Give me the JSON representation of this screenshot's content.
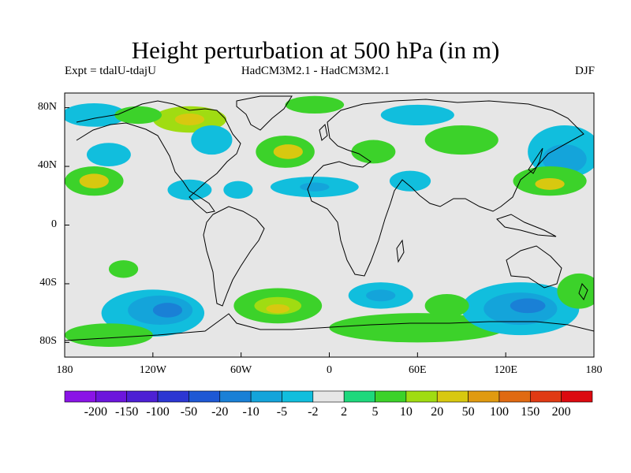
{
  "title": "Height perturbation at 500 hPa (in m)",
  "subtitle_left": "Expt = tdalU-tdajU",
  "subtitle_center": "HadCM3M2.1 - HadCM3M2.1",
  "subtitle_right": "DJF",
  "map": {
    "projection": "cylindrical equidistant",
    "lon_range": [
      -180,
      180
    ],
    "lat_range": [
      -90,
      90
    ],
    "background_color": "#e6e6e6",
    "coastline_color": "#000000"
  },
  "axes": {
    "y_ticks": [
      {
        "label": "80N",
        "lat": 80
      },
      {
        "label": "40N",
        "lat": 40
      },
      {
        "label": "0",
        "lat": 0
      },
      {
        "label": "40S",
        "lat": -40
      },
      {
        "label": "80S",
        "lat": -80
      }
    ],
    "x_ticks": [
      {
        "label": "180",
        "lon": -180
      },
      {
        "label": "120W",
        "lon": -120
      },
      {
        "label": "60W",
        "lon": -60
      },
      {
        "label": "0",
        "lon": 0
      },
      {
        "label": "60E",
        "lon": 60
      },
      {
        "label": "120E",
        "lon": 120
      },
      {
        "label": "180",
        "lon": 180
      }
    ]
  },
  "colorbar": {
    "labels": [
      "-200",
      "-150",
      "-100",
      "-50",
      "-20",
      "-10",
      "-5",
      "-2",
      "2",
      "5",
      "10",
      "20",
      "50",
      "100",
      "150",
      "200"
    ],
    "colors": [
      "#8a14e6",
      "#6c16dc",
      "#4d20d4",
      "#2c36d2",
      "#1e58d4",
      "#1a80d6",
      "#14a4da",
      "#11bedd",
      "#e6e6e6",
      "#1ed87c",
      "#3cd22a",
      "#a0dc12",
      "#d8c810",
      "#e09a10",
      "#e06a12",
      "#e03a14",
      "#dc0a10"
    ]
  },
  "chart_data": {
    "type": "heatmap",
    "title": "Height perturbation at 500 hPa (in m)",
    "variable": "Height perturbation at 500 hPa",
    "units": "m",
    "season": "DJF",
    "contour_levels": [
      -200,
      -150,
      -100,
      -50,
      -20,
      -10,
      -5,
      -2,
      2,
      5,
      10,
      20,
      50,
      100,
      150,
      200
    ],
    "features": [
      {
        "lon": -95,
        "lat": 72,
        "rx": 25,
        "ry": 9,
        "value": 10
      },
      {
        "lon": -95,
        "lat": 72,
        "rx": 10,
        "ry": 4,
        "value": 20
      },
      {
        "lon": -160,
        "lat": 75,
        "rx": 22,
        "ry": 8,
        "value": -5
      },
      {
        "lon": -130,
        "lat": 75,
        "rx": 16,
        "ry": 6,
        "value": 5
      },
      {
        "lon": -10,
        "lat": 82,
        "rx": 20,
        "ry": 6,
        "value": 5
      },
      {
        "lon": -150,
        "lat": 48,
        "rx": 15,
        "ry": 8,
        "value": -5
      },
      {
        "lon": -160,
        "lat": 30,
        "rx": 20,
        "ry": 10,
        "value": 5
      },
      {
        "lon": -160,
        "lat": 30,
        "rx": 10,
        "ry": 5,
        "value": 20
      },
      {
        "lon": -95,
        "lat": 24,
        "rx": 15,
        "ry": 7,
        "value": -5
      },
      {
        "lon": -62,
        "lat": 24,
        "rx": 10,
        "ry": 6,
        "value": -5
      },
      {
        "lon": -80,
        "lat": 58,
        "rx": 14,
        "ry": 10,
        "value": -5
      },
      {
        "lon": -30,
        "lat": 50,
        "rx": 20,
        "ry": 11,
        "value": 5
      },
      {
        "lon": -28,
        "lat": 50,
        "rx": 10,
        "ry": 5,
        "value": 20
      },
      {
        "lon": -10,
        "lat": 26,
        "rx": 30,
        "ry": 7,
        "value": -5
      },
      {
        "lon": -10,
        "lat": 26,
        "rx": 10,
        "ry": 3,
        "value": -10
      },
      {
        "lon": 30,
        "lat": 50,
        "rx": 15,
        "ry": 8,
        "value": 5
      },
      {
        "lon": 55,
        "lat": 30,
        "rx": 14,
        "ry": 7,
        "value": -5
      },
      {
        "lon": 90,
        "lat": 58,
        "rx": 25,
        "ry": 10,
        "value": 5
      },
      {
        "lon": 60,
        "lat": 75,
        "rx": 25,
        "ry": 7,
        "value": -5
      },
      {
        "lon": 160,
        "lat": 50,
        "rx": 25,
        "ry": 18,
        "value": -5
      },
      {
        "lon": 160,
        "lat": 45,
        "rx": 15,
        "ry": 10,
        "value": -10
      },
      {
        "lon": 150,
        "lat": 30,
        "rx": 25,
        "ry": 10,
        "value": 5
      },
      {
        "lon": 150,
        "lat": 28,
        "rx": 10,
        "ry": 4,
        "value": 20
      },
      {
        "lon": -120,
        "lat": -60,
        "rx": 35,
        "ry": 16,
        "value": -5
      },
      {
        "lon": -115,
        "lat": -58,
        "rx": 22,
        "ry": 10,
        "value": -10
      },
      {
        "lon": -110,
        "lat": -58,
        "rx": 10,
        "ry": 5,
        "value": -20
      },
      {
        "lon": -140,
        "lat": -30,
        "rx": 10,
        "ry": 6,
        "value": 5
      },
      {
        "lon": -35,
        "lat": -55,
        "rx": 30,
        "ry": 12,
        "value": 5
      },
      {
        "lon": -35,
        "lat": -55,
        "rx": 16,
        "ry": 6,
        "value": 10
      },
      {
        "lon": -35,
        "lat": -57,
        "rx": 8,
        "ry": 3,
        "value": 20
      },
      {
        "lon": 35,
        "lat": -48,
        "rx": 22,
        "ry": 9,
        "value": -5
      },
      {
        "lon": 35,
        "lat": -48,
        "rx": 10,
        "ry": 4,
        "value": -10
      },
      {
        "lon": 60,
        "lat": -70,
        "rx": 60,
        "ry": 10,
        "value": 5
      },
      {
        "lon": 130,
        "lat": -57,
        "rx": 40,
        "ry": 18,
        "value": -5
      },
      {
        "lon": 130,
        "lat": -57,
        "rx": 25,
        "ry": 11,
        "value": -10
      },
      {
        "lon": 135,
        "lat": -55,
        "rx": 12,
        "ry": 5,
        "value": -20
      },
      {
        "lon": 80,
        "lat": -55,
        "rx": 15,
        "ry": 8,
        "value": 5
      },
      {
        "lon": 170,
        "lat": -45,
        "rx": 15,
        "ry": 12,
        "value": 5
      },
      {
        "lon": -150,
        "lat": -75,
        "rx": 30,
        "ry": 8,
        "value": 5
      }
    ]
  }
}
